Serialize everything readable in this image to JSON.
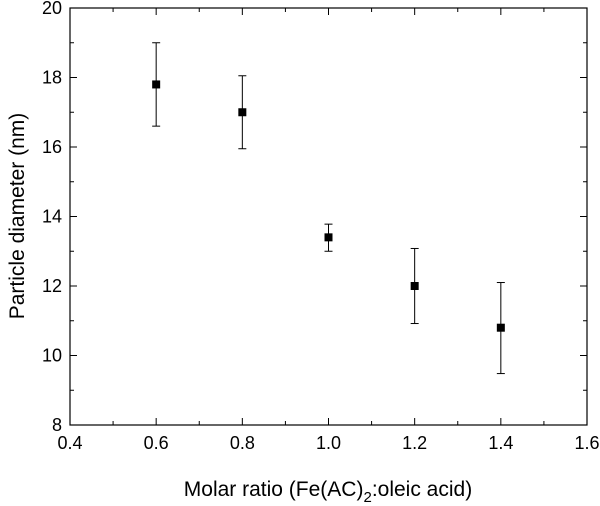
{
  "chart_data": {
    "type": "scatter",
    "title": "",
    "xlabel": "Molar ratio (Fe(AC)",
    "xlabel_subscript": "2",
    "xlabel_suffix": ":oleic acid)",
    "ylabel": "Particle diameter (nm)",
    "xlim": [
      0.4,
      1.6
    ],
    "ylim": [
      8,
      20
    ],
    "x_ticks": [
      0.4,
      0.6,
      0.8,
      1.0,
      1.2,
      1.4,
      1.6
    ],
    "x_tick_labels": [
      "0.4",
      "0.6",
      "0.8",
      "1.0",
      "1.2",
      "1.4",
      "1.6"
    ],
    "y_ticks": [
      8,
      10,
      12,
      14,
      16,
      18,
      20
    ],
    "y_tick_labels": [
      "8",
      "10",
      "12",
      "14",
      "16",
      "18",
      "20"
    ],
    "grid": false,
    "legend": "none",
    "marker": "square",
    "marker_color": "#000000",
    "series": [
      {
        "x": [
          0.6,
          0.8,
          1.0,
          1.2,
          1.4
        ],
        "y": [
          17.8,
          17.0,
          13.4,
          12.0,
          10.8
        ],
        "yerr_low": [
          16.6,
          15.95,
          13.0,
          10.92,
          9.48
        ],
        "yerr_high": [
          19.0,
          18.05,
          13.78,
          13.08,
          12.1
        ]
      }
    ]
  }
}
